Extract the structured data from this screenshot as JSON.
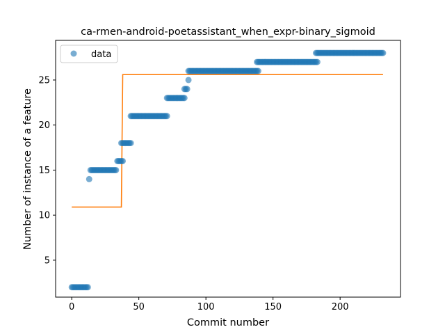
{
  "chart_data": {
    "type": "scatter",
    "title": "ca-rmen-android-poetassistant_when_expr-binary_sigmoid",
    "xlabel": "Commit number",
    "ylabel": "Number of instance of a feature",
    "xlim": [
      -12,
      245
    ],
    "ylim": [
      0.9,
      29.4
    ],
    "xticks": [
      0,
      50,
      100,
      150,
      200
    ],
    "yticks": [
      5,
      10,
      15,
      20,
      25
    ],
    "grid": false,
    "legend": {
      "placement": "top-left",
      "entries": [
        "data"
      ]
    },
    "colors": {
      "data": "#1f77b4",
      "fit": "#ff7f0e"
    },
    "series": [
      {
        "name": "data",
        "kind": "scatter",
        "segments": [
          {
            "x_start": 0,
            "x_end": 12,
            "y": 2
          },
          {
            "x_start": 13,
            "x_end": 13,
            "y": 14
          },
          {
            "x_start": 14,
            "x_end": 33,
            "y": 15
          },
          {
            "x_start": 34,
            "x_end": 38,
            "y": 16
          },
          {
            "x_start": 37,
            "x_end": 44,
            "y": 18
          },
          {
            "x_start": 44,
            "x_end": 71,
            "y": 21
          },
          {
            "x_start": 71,
            "x_end": 84,
            "y": 23
          },
          {
            "x_start": 84,
            "x_end": 86,
            "y": 24
          },
          {
            "x_start": 87,
            "x_end": 87,
            "y": 25
          },
          {
            "x_start": 87,
            "x_end": 139,
            "y": 26
          },
          {
            "x_start": 138,
            "x_end": 183,
            "y": 27
          },
          {
            "x_start": 182,
            "x_end": 232,
            "y": 28
          }
        ]
      },
      {
        "kind": "line",
        "points": [
          [
            0,
            10.9
          ],
          [
            37,
            10.9
          ],
          [
            38,
            25.6
          ],
          [
            232,
            25.6
          ]
        ]
      }
    ]
  }
}
